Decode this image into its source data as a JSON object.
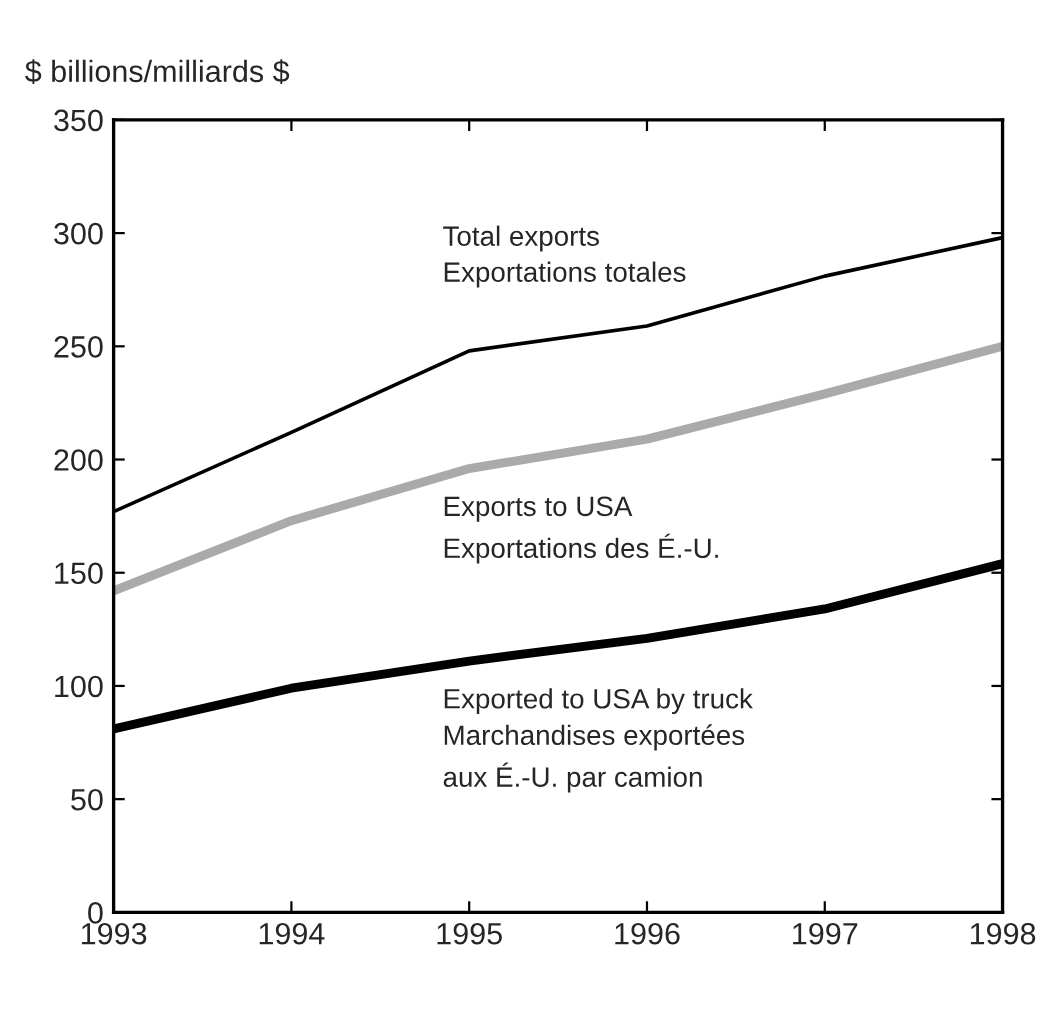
{
  "chart_data": {
    "type": "line",
    "ylabel": "$ billions/milliards $",
    "x": [
      1993,
      1994,
      1995,
      1996,
      1997,
      1998
    ],
    "series": [
      {
        "name": "Total exports\nExportations totales",
        "color": "#000000",
        "values": [
          177,
          212,
          248,
          259,
          281,
          298
        ]
      },
      {
        "name": "Exports to USA\nExportations des É.-U.",
        "color": "#aaaaaa",
        "values": [
          142,
          173,
          196,
          209,
          229,
          250
        ]
      },
      {
        "name": "Exported to USA by truck\nMarchandises exportées\naux É.-U. par camion",
        "color": "#000000",
        "values": [
          81,
          99,
          111,
          121,
          134,
          154
        ]
      }
    ],
    "xlim": [
      1993,
      1998
    ],
    "xticks": [
      1993,
      1994,
      1995,
      1996,
      1997,
      1998
    ],
    "ylim": [
      0,
      350
    ],
    "yticks": [
      0,
      50,
      100,
      150,
      200,
      250,
      300,
      350
    ],
    "grid": false,
    "legend": false,
    "marker": "none",
    "line_style": "solid"
  }
}
